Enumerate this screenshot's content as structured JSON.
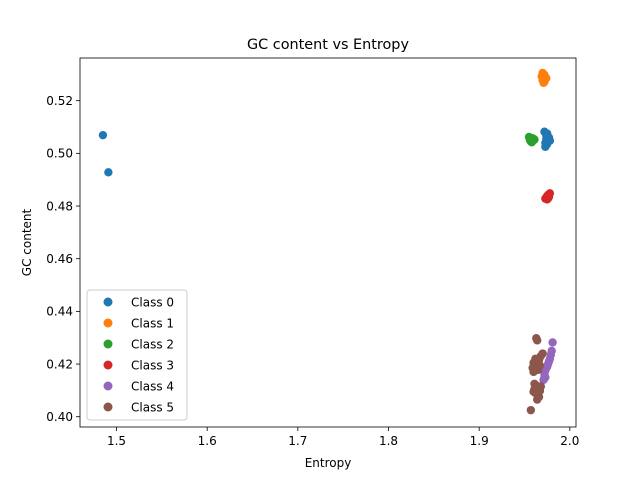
{
  "chart_data": {
    "type": "scatter",
    "title": "GC content vs Entropy",
    "xlabel": "Entropy",
    "ylabel": "GC content",
    "xlim": [
      1.4597,
      2.0068
    ],
    "ylim": [
      0.3961,
      0.5362
    ],
    "xticks": [
      1.5,
      1.6,
      1.7,
      1.8,
      1.9,
      2.0
    ],
    "xtick_labels": [
      "1.5",
      "1.6",
      "1.7",
      "1.8",
      "1.9",
      "2.0"
    ],
    "yticks": [
      0.4,
      0.42,
      0.44,
      0.46,
      0.48,
      0.5,
      0.52
    ],
    "ytick_labels": [
      "0.40",
      "0.42",
      "0.44",
      "0.46",
      "0.48",
      "0.50",
      "0.52"
    ],
    "grid": false,
    "legend_position": "lower-left",
    "series": [
      {
        "name": "Class 0",
        "color": "#1f77b4",
        "points": [
          [
            1.485,
            0.5069
          ],
          [
            1.491,
            0.4928
          ],
          [
            1.972,
            0.5082
          ],
          [
            1.975,
            0.5075
          ],
          [
            1.977,
            0.506
          ],
          [
            1.974,
            0.5055
          ],
          [
            1.976,
            0.5045
          ],
          [
            1.973,
            0.504
          ],
          [
            1.978,
            0.5048
          ],
          [
            1.975,
            0.5035
          ],
          [
            1.973,
            0.5025
          ],
          [
            1.974,
            0.5068
          ]
        ]
      },
      {
        "name": "Class 1",
        "color": "#ff7f0e",
        "points": [
          [
            1.97,
            0.5305
          ],
          [
            1.972,
            0.5298
          ],
          [
            1.969,
            0.5292
          ],
          [
            1.973,
            0.5287
          ],
          [
            1.971,
            0.5282
          ],
          [
            1.974,
            0.5285
          ],
          [
            1.97,
            0.5278
          ],
          [
            1.972,
            0.5272
          ],
          [
            1.971,
            0.5268
          ]
        ]
      },
      {
        "name": "Class 2",
        "color": "#2ca02c",
        "points": [
          [
            1.955,
            0.5062
          ],
          [
            1.958,
            0.5058
          ],
          [
            1.96,
            0.5055
          ],
          [
            1.956,
            0.505
          ],
          [
            1.959,
            0.5048
          ],
          [
            1.957,
            0.5045
          ],
          [
            1.961,
            0.5052
          ],
          [
            1.958,
            0.5042
          ]
        ]
      },
      {
        "name": "Class 3",
        "color": "#d62728",
        "points": [
          [
            1.978,
            0.4848
          ],
          [
            1.976,
            0.4842
          ],
          [
            1.975,
            0.4838
          ],
          [
            1.977,
            0.4835
          ],
          [
            1.974,
            0.4832
          ],
          [
            1.976,
            0.4829
          ],
          [
            1.973,
            0.4828
          ],
          [
            1.975,
            0.4825
          ]
        ]
      },
      {
        "name": "Class 4",
        "color": "#9467bd",
        "points": [
          [
            1.981,
            0.4282
          ],
          [
            1.98,
            0.425
          ],
          [
            1.979,
            0.4235
          ],
          [
            1.978,
            0.422
          ],
          [
            1.977,
            0.421
          ],
          [
            1.976,
            0.42
          ],
          [
            1.975,
            0.419
          ],
          [
            1.974,
            0.4185
          ],
          [
            1.973,
            0.4175
          ],
          [
            1.972,
            0.4165
          ],
          [
            1.972,
            0.4155
          ],
          [
            1.973,
            0.415
          ],
          [
            1.971,
            0.414
          ]
        ]
      },
      {
        "name": "Class 5",
        "color": "#8c564b",
        "points": [
          [
            1.963,
            0.4298
          ],
          [
            1.964,
            0.429
          ],
          [
            1.97,
            0.424
          ],
          [
            1.968,
            0.423
          ],
          [
            1.962,
            0.422
          ],
          [
            1.966,
            0.4215
          ],
          [
            1.96,
            0.4205
          ],
          [
            1.964,
            0.42
          ],
          [
            1.967,
            0.4195
          ],
          [
            1.959,
            0.4185
          ],
          [
            1.962,
            0.418
          ],
          [
            1.965,
            0.4178
          ],
          [
            1.96,
            0.417
          ],
          [
            1.961,
            0.4125
          ],
          [
            1.963,
            0.4118
          ],
          [
            1.966,
            0.4112
          ],
          [
            1.968,
            0.4115
          ],
          [
            1.961,
            0.4105
          ],
          [
            1.964,
            0.41
          ],
          [
            1.967,
            0.4098
          ],
          [
            1.962,
            0.409
          ],
          [
            1.965,
            0.4085
          ],
          [
            1.96,
            0.4095
          ],
          [
            1.966,
            0.4075
          ],
          [
            1.964,
            0.4065
          ],
          [
            1.957,
            0.4025
          ]
        ]
      }
    ]
  }
}
